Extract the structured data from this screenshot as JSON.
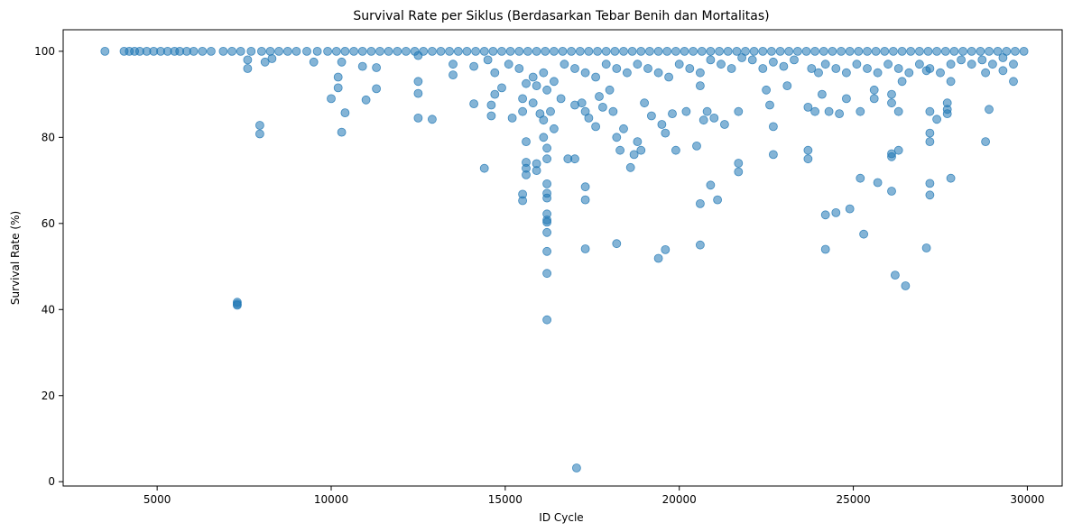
{
  "chart_data": {
    "type": "scatter",
    "title": "Survival Rate per Siklus (Berdasarkan Tebar Benih dan Mortalitas)",
    "xlabel": "ID Cycle",
    "ylabel": "Survival Rate (%)",
    "xlim": [
      2300,
      31000
    ],
    "ylim": [
      -1,
      105
    ],
    "xticks": [
      5000,
      10000,
      15000,
      20000,
      25000,
      30000
    ],
    "yticks": [
      0,
      20,
      40,
      60,
      80,
      100
    ],
    "grid": false,
    "legend": "none",
    "color": "#1f77b4",
    "opacity": 0.55,
    "points": [
      [
        3500,
        100
      ],
      [
        4050,
        100
      ],
      [
        4200,
        100
      ],
      [
        4350,
        100
      ],
      [
        4500,
        100
      ],
      [
        4700,
        100
      ],
      [
        4900,
        100
      ],
      [
        5100,
        100
      ],
      [
        5300,
        100
      ],
      [
        5500,
        100
      ],
      [
        5650,
        100
      ],
      [
        5850,
        100
      ],
      [
        6050,
        100
      ],
      [
        6300,
        100
      ],
      [
        6550,
        100
      ],
      [
        6900,
        100
      ],
      [
        7150,
        100
      ],
      [
        7400,
        100
      ],
      [
        7700,
        100
      ],
      [
        8000,
        100
      ],
      [
        8250,
        100
      ],
      [
        8500,
        100
      ],
      [
        8750,
        100
      ],
      [
        9000,
        100
      ],
      [
        9300,
        100
      ],
      [
        9600,
        100
      ],
      [
        9900,
        100
      ],
      [
        10150,
        100
      ],
      [
        10400,
        100
      ],
      [
        10650,
        100
      ],
      [
        10900,
        100
      ],
      [
        11150,
        100
      ],
      [
        11400,
        100
      ],
      [
        11650,
        100
      ],
      [
        11900,
        100
      ],
      [
        12150,
        100
      ],
      [
        12400,
        100
      ],
      [
        12650,
        100
      ],
      [
        12900,
        100
      ],
      [
        13150,
        100
      ],
      [
        13400,
        100
      ],
      [
        13650,
        100
      ],
      [
        13900,
        100
      ],
      [
        14150,
        100
      ],
      [
        14400,
        100
      ],
      [
        14650,
        100
      ],
      [
        14900,
        100
      ],
      [
        15150,
        100
      ],
      [
        15400,
        100
      ],
      [
        15650,
        100
      ],
      [
        15900,
        100
      ],
      [
        16150,
        100
      ],
      [
        16400,
        100
      ],
      [
        16650,
        100
      ],
      [
        16900,
        100
      ],
      [
        17150,
        100
      ],
      [
        17400,
        100
      ],
      [
        17650,
        100
      ],
      [
        17900,
        100
      ],
      [
        18150,
        100
      ],
      [
        18400,
        100
      ],
      [
        18650,
        100
      ],
      [
        18900,
        100
      ],
      [
        19150,
        100
      ],
      [
        19400,
        100
      ],
      [
        19650,
        100
      ],
      [
        19900,
        100
      ],
      [
        20150,
        100
      ],
      [
        20400,
        100
      ],
      [
        20650,
        100
      ],
      [
        20900,
        100
      ],
      [
        21150,
        100
      ],
      [
        21400,
        100
      ],
      [
        21650,
        100
      ],
      [
        21900,
        100
      ],
      [
        22150,
        100
      ],
      [
        22400,
        100
      ],
      [
        22650,
        100
      ],
      [
        22900,
        100
      ],
      [
        23150,
        100
      ],
      [
        23400,
        100
      ],
      [
        23650,
        100
      ],
      [
        23900,
        100
      ],
      [
        24150,
        100
      ],
      [
        24400,
        100
      ],
      [
        24650,
        100
      ],
      [
        24900,
        100
      ],
      [
        25150,
        100
      ],
      [
        25400,
        100
      ],
      [
        25650,
        100
      ],
      [
        25900,
        100
      ],
      [
        26150,
        100
      ],
      [
        26400,
        100
      ],
      [
        26650,
        100
      ],
      [
        26900,
        100
      ],
      [
        27150,
        100
      ],
      [
        27400,
        100
      ],
      [
        27650,
        100
      ],
      [
        27900,
        100
      ],
      [
        28150,
        100
      ],
      [
        28400,
        100
      ],
      [
        28650,
        100
      ],
      [
        28900,
        100
      ],
      [
        29150,
        100
      ],
      [
        29400,
        100
      ],
      [
        29650,
        100
      ],
      [
        29900,
        100
      ],
      [
        7600,
        98
      ],
      [
        7600,
        96
      ],
      [
        8100,
        97.5
      ],
      [
        8300,
        98.3
      ],
      [
        9500,
        97.5
      ],
      [
        10300,
        97.5
      ],
      [
        10900,
        96.5
      ],
      [
        11300,
        96.2
      ],
      [
        12500,
        99
      ],
      [
        13500,
        97
      ],
      [
        13500,
        94.5
      ],
      [
        14100,
        96.5
      ],
      [
        14500,
        98
      ],
      [
        14700,
        95
      ],
      [
        15100,
        97
      ],
      [
        15400,
        96
      ],
      [
        15800,
        94
      ],
      [
        16100,
        95
      ],
      [
        16400,
        93
      ],
      [
        16700,
        97
      ],
      [
        17000,
        96
      ],
      [
        17300,
        95
      ],
      [
        17600,
        94
      ],
      [
        17900,
        97
      ],
      [
        18200,
        96
      ],
      [
        18500,
        95
      ],
      [
        18800,
        97
      ],
      [
        19100,
        96
      ],
      [
        19400,
        95
      ],
      [
        19700,
        94
      ],
      [
        20000,
        97
      ],
      [
        20300,
        96
      ],
      [
        20600,
        95
      ],
      [
        20900,
        98
      ],
      [
        21200,
        97
      ],
      [
        21500,
        96
      ],
      [
        21800,
        98.5
      ],
      [
        22100,
        98
      ],
      [
        22400,
        96
      ],
      [
        22700,
        97.5
      ],
      [
        23000,
        96.5
      ],
      [
        23300,
        98
      ],
      [
        23800,
        96
      ],
      [
        24000,
        95
      ],
      [
        24200,
        97
      ],
      [
        24500,
        96
      ],
      [
        24800,
        95
      ],
      [
        25100,
        97
      ],
      [
        25400,
        96
      ],
      [
        25700,
        95
      ],
      [
        26000,
        97
      ],
      [
        26300,
        96
      ],
      [
        26600,
        95
      ],
      [
        26900,
        97
      ],
      [
        27200,
        96
      ],
      [
        27500,
        95
      ],
      [
        27800,
        97
      ],
      [
        28100,
        98
      ],
      [
        28400,
        97
      ],
      [
        28700,
        98
      ],
      [
        29000,
        97
      ],
      [
        29300,
        98.5
      ],
      [
        29600,
        97
      ],
      [
        7950,
        82.8
      ],
      [
        7950,
        80.8
      ],
      [
        10000,
        89
      ],
      [
        10200,
        91.5
      ],
      [
        10200,
        94
      ],
      [
        10300,
        81.2
      ],
      [
        10400,
        85.7
      ],
      [
        11000,
        88.7
      ],
      [
        11300,
        91.3
      ],
      [
        12500,
        93
      ],
      [
        12500,
        90.2
      ],
      [
        12500,
        84.5
      ],
      [
        12900,
        84.2
      ],
      [
        14100,
        87.8
      ],
      [
        14400,
        72.8
      ],
      [
        14600,
        85
      ],
      [
        14600,
        87.5
      ],
      [
        14700,
        90
      ],
      [
        14900,
        91.5
      ],
      [
        15200,
        84.5
      ],
      [
        15500,
        86
      ],
      [
        15500,
        89
      ],
      [
        15600,
        92.5
      ],
      [
        15800,
        88
      ],
      [
        15900,
        92
      ],
      [
        16000,
        85.5
      ],
      [
        16100,
        80
      ],
      [
        16100,
        84
      ],
      [
        16200,
        91
      ],
      [
        16300,
        86
      ],
      [
        16400,
        82
      ],
      [
        16600,
        89
      ],
      [
        16800,
        75
      ],
      [
        17000,
        87.5
      ],
      [
        17200,
        88
      ],
      [
        17300,
        86
      ],
      [
        17400,
        84.5
      ],
      [
        17600,
        82.5
      ],
      [
        17700,
        89.5
      ],
      [
        17800,
        87
      ],
      [
        18000,
        91
      ],
      [
        18100,
        86
      ],
      [
        18200,
        80
      ],
      [
        18300,
        77
      ],
      [
        18400,
        82
      ],
      [
        18600,
        73
      ],
      [
        18700,
        76
      ],
      [
        18800,
        79
      ],
      [
        18900,
        77
      ],
      [
        19000,
        88
      ],
      [
        19200,
        85
      ],
      [
        19500,
        83
      ],
      [
        19600,
        81
      ],
      [
        19800,
        85.5
      ],
      [
        19900,
        77
      ],
      [
        20200,
        86
      ],
      [
        20500,
        78
      ],
      [
        20600,
        92
      ],
      [
        20700,
        84
      ],
      [
        20800,
        86
      ],
      [
        21000,
        84.5
      ],
      [
        21300,
        83
      ],
      [
        21700,
        86
      ],
      [
        21700,
        74
      ],
      [
        21700,
        72
      ],
      [
        22500,
        91
      ],
      [
        22600,
        87.5
      ],
      [
        22700,
        76
      ],
      [
        22700,
        82.5
      ],
      [
        23100,
        92
      ],
      [
        23700,
        87
      ],
      [
        23700,
        77
      ],
      [
        23700,
        75
      ],
      [
        23900,
        86
      ],
      [
        24100,
        90
      ],
      [
        24300,
        86
      ],
      [
        24600,
        85.5
      ],
      [
        24800,
        89
      ],
      [
        25200,
        86
      ],
      [
        25600,
        89
      ],
      [
        25600,
        91
      ],
      [
        25700,
        69.5
      ],
      [
        26100,
        90
      ],
      [
        26100,
        88
      ],
      [
        26300,
        86
      ],
      [
        26400,
        93
      ],
      [
        27100,
        95.5
      ],
      [
        27200,
        81
      ],
      [
        27200,
        79
      ],
      [
        27200,
        86
      ],
      [
        27400,
        84.2
      ],
      [
        27700,
        88
      ],
      [
        27700,
        85.5
      ],
      [
        27700,
        86.5
      ],
      [
        27800,
        93
      ],
      [
        28800,
        95
      ],
      [
        28800,
        79
      ],
      [
        28900,
        86.5
      ],
      [
        29300,
        95.5
      ],
      [
        29600,
        93
      ],
      [
        15600,
        79
      ],
      [
        15600,
        74.2
      ],
      [
        15600,
        72.8
      ],
      [
        15600,
        71.3
      ],
      [
        15500,
        66.8
      ],
      [
        15500,
        65.3
      ],
      [
        15900,
        73.9
      ],
      [
        15900,
        72.3
      ],
      [
        16200,
        77.5
      ],
      [
        16200,
        75
      ],
      [
        16200,
        69.2
      ],
      [
        16200,
        67
      ],
      [
        16200,
        65.9
      ],
      [
        16200,
        62.2
      ],
      [
        16200,
        60.8
      ],
      [
        16200,
        60.3
      ],
      [
        16200,
        57.9
      ],
      [
        16200,
        53.5
      ],
      [
        16200,
        48.4
      ],
      [
        16200,
        37.6
      ],
      [
        17000,
        75
      ],
      [
        17300,
        68.5
      ],
      [
        17300,
        65.5
      ],
      [
        17300,
        54.1
      ],
      [
        18200,
        55.3
      ],
      [
        19400,
        51.9
      ],
      [
        19600,
        53.9
      ],
      [
        20600,
        64.6
      ],
      [
        20600,
        55
      ],
      [
        20900,
        68.9
      ],
      [
        21100,
        65.5
      ],
      [
        24200,
        62
      ],
      [
        24500,
        62.5
      ],
      [
        24900,
        63.4
      ],
      [
        24200,
        54
      ],
      [
        25300,
        57.5
      ],
      [
        25200,
        70.5
      ],
      [
        26100,
        67.5
      ],
      [
        26100,
        76.2
      ],
      [
        26100,
        75.5
      ],
      [
        26300,
        77
      ],
      [
        26200,
        48
      ],
      [
        26500,
        45.5
      ],
      [
        27100,
        54.3
      ],
      [
        27200,
        69.3
      ],
      [
        27200,
        66.6
      ],
      [
        27800,
        70.5
      ],
      [
        7300,
        41.7
      ],
      [
        7300,
        41.3
      ],
      [
        7300,
        41
      ],
      [
        17050,
        3.2
      ]
    ]
  }
}
